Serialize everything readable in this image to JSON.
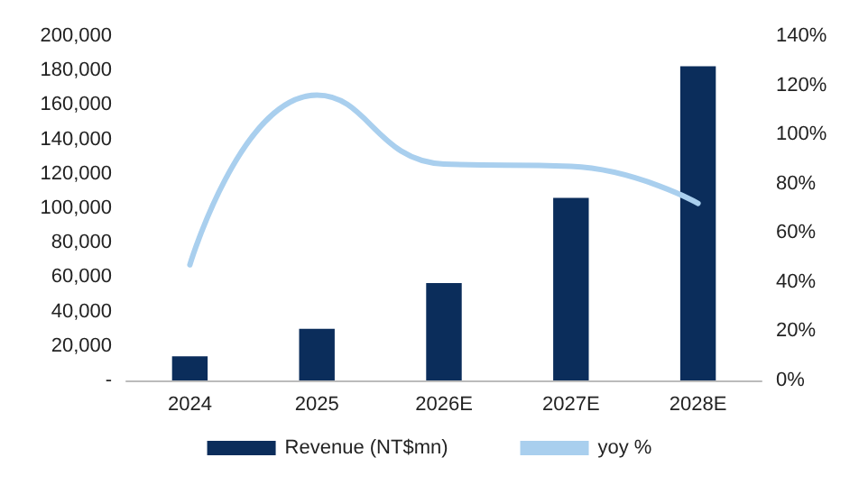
{
  "chart_data": {
    "type": "bar",
    "categories": [
      "2024",
      "2025",
      "2026E",
      "2027E",
      "2028E"
    ],
    "series": [
      {
        "name": "Revenue (NT$mn)",
        "color": "#0b2d5b",
        "values": [
          14000,
          30000,
          56500,
          106000,
          182500
        ]
      },
      {
        "name": "yoy %",
        "type": "line",
        "axis": "y2",
        "color": "#a9cfee",
        "values": [
          47,
          116,
          88,
          87,
          72
        ]
      }
    ],
    "ylim": [
      0,
      200000
    ],
    "yticks": [
      {
        "value": 0,
        "label": "-"
      },
      {
        "value": 20000,
        "label": "20,000"
      },
      {
        "value": 40000,
        "label": "40,000"
      },
      {
        "value": 60000,
        "label": "60,000"
      },
      {
        "value": 80000,
        "label": "80,000"
      },
      {
        "value": 100000,
        "label": "100,000"
      },
      {
        "value": 120000,
        "label": "120,000"
      },
      {
        "value": 140000,
        "label": "140,000"
      },
      {
        "value": 160000,
        "label": "160,000"
      },
      {
        "value": 180000,
        "label": "180,000"
      },
      {
        "value": 200000,
        "label": "200,000"
      }
    ],
    "y2lim": [
      0,
      140
    ],
    "y2ticks": [
      {
        "value": 0,
        "label": "0%"
      },
      {
        "value": 20,
        "label": "20%"
      },
      {
        "value": 40,
        "label": "40%"
      },
      {
        "value": 60,
        "label": "60%"
      },
      {
        "value": 80,
        "label": "80%"
      },
      {
        "value": 100,
        "label": "100%"
      },
      {
        "value": 120,
        "label": "120%"
      },
      {
        "value": 140,
        "label": "140%"
      }
    ],
    "grid": false,
    "legend": "bottom",
    "marker": "none",
    "line_style": "solid"
  }
}
